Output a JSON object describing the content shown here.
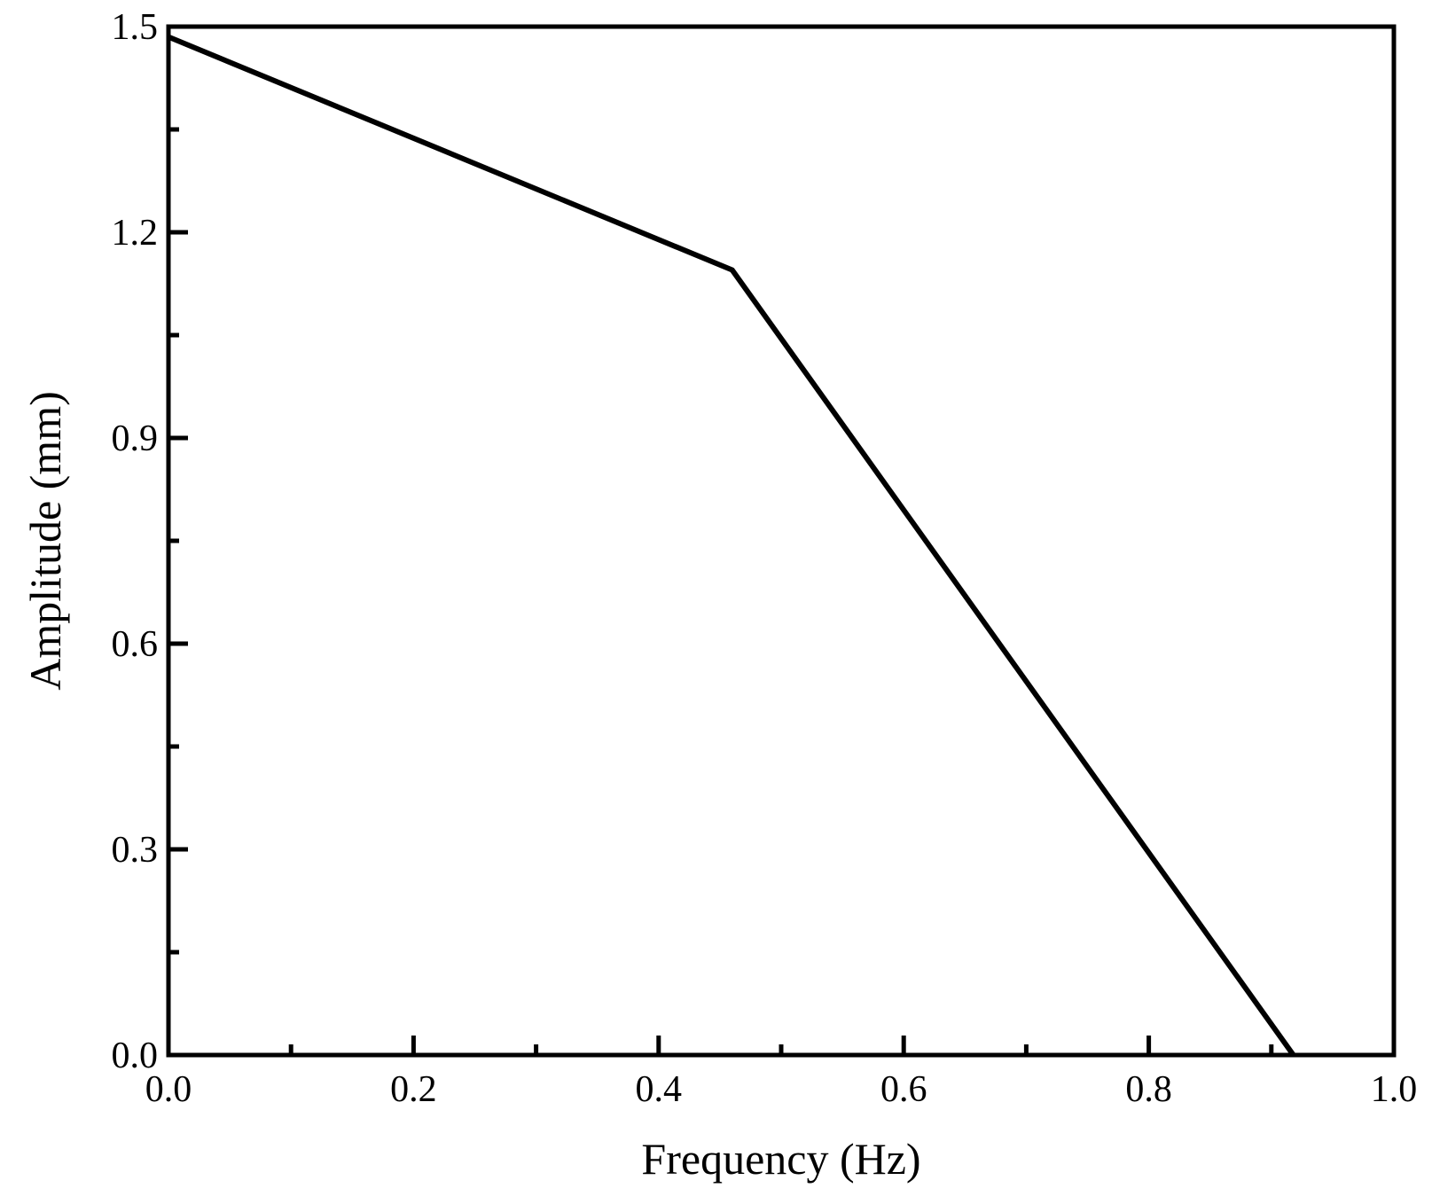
{
  "chart_data": {
    "type": "line",
    "title": "",
    "xlabel": "Frequency (Hz)",
    "ylabel": "Amplitude (mm)",
    "xlim": [
      0.0,
      1.0
    ],
    "ylim": [
      0.0,
      1.5
    ],
    "x_ticks": [
      "0.0",
      "0.2",
      "0.4",
      "0.6",
      "0.8",
      "1.0"
    ],
    "y_ticks": [
      "0.0",
      "0.3",
      "0.6",
      "0.9",
      "1.2",
      "1.5"
    ],
    "x_tick_values": [
      0.0,
      0.2,
      0.4,
      0.6,
      0.8,
      1.0
    ],
    "y_tick_values": [
      0.0,
      0.3,
      0.6,
      0.9,
      1.2,
      1.5
    ],
    "x_minor_tick_values": [
      0.1,
      0.3,
      0.5,
      0.7,
      0.9
    ],
    "y_minor_tick_values": [
      0.15,
      0.45,
      0.75,
      1.05,
      1.35
    ],
    "grid": false,
    "legend": "none",
    "line_color": "#000000",
    "series": [
      {
        "x": [
          0.0,
          0.46,
          0.918
        ],
        "y": [
          1.485,
          1.145,
          0.0
        ]
      }
    ]
  }
}
